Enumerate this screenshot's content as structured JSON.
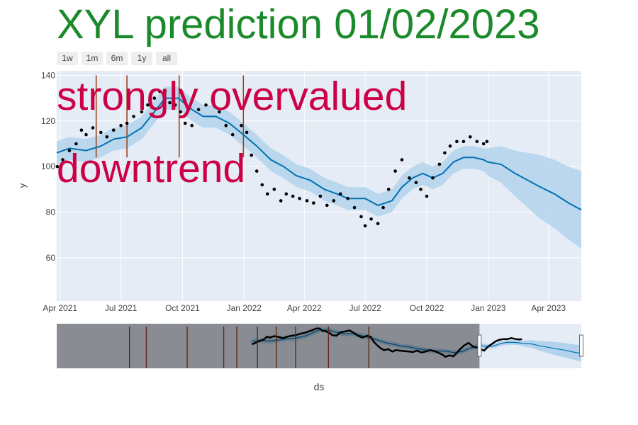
{
  "title": "XYL prediction 01/02/2023",
  "colors": {
    "title": "#1a8a2a",
    "annotation": "#cc0044",
    "plot_bg": "#e5ecf6",
    "forecast_line": "#0072b2",
    "band": "#b3d3ec",
    "changepoint": "#a0431e",
    "points": "#000000"
  },
  "range_buttons": [
    "1w",
    "1m",
    "6m",
    "1y",
    "all"
  ],
  "annotations": [
    "strongly overvalued",
    "downtrend"
  ],
  "chart_data": {
    "type": "line",
    "xlabel": "ds",
    "ylabel": "y",
    "x_range": [
      "2021-03-27",
      "2023-05-20"
    ],
    "ylim": [
      41,
      142
    ],
    "x_ticks": [
      {
        "date": "2021-04-01",
        "label": "Apr 2021"
      },
      {
        "date": "2021-07-01",
        "label": "Jul 2021"
      },
      {
        "date": "2021-10-01",
        "label": "Oct 2021"
      },
      {
        "date": "2022-01-01",
        "label": "Jan 2022"
      },
      {
        "date": "2022-04-01",
        "label": "Apr 2022"
      },
      {
        "date": "2022-07-01",
        "label": "Jul 2022"
      },
      {
        "date": "2022-10-01",
        "label": "Oct 2022"
      },
      {
        "date": "2023-01-01",
        "label": "Jan 2023"
      },
      {
        "date": "2023-04-01",
        "label": "Apr 2023"
      }
    ],
    "y_ticks": [
      60,
      80,
      100,
      120,
      140
    ],
    "grid": true,
    "series": [
      {
        "kind": "forecast",
        "x": [
          "2021-03-27",
          "2021-04-15",
          "2021-05-10",
          "2021-06-01",
          "2021-06-20",
          "2021-07-10",
          "2021-08-01",
          "2021-08-20",
          "2021-09-05",
          "2021-09-25",
          "2021-10-15",
          "2021-11-01",
          "2021-11-20",
          "2021-12-10",
          "2021-12-31",
          "2022-01-20",
          "2022-02-10",
          "2022-03-01",
          "2022-03-20",
          "2022-04-10",
          "2022-05-01",
          "2022-05-20",
          "2022-06-05",
          "2022-06-20",
          "2022-07-01",
          "2022-07-20",
          "2022-08-10",
          "2022-08-25",
          "2022-09-10",
          "2022-09-25",
          "2022-10-10",
          "2022-10-25",
          "2022-11-10",
          "2022-11-25",
          "2022-12-10",
          "2022-12-25",
          "2022-12-31",
          "2023-01-20",
          "2023-02-10",
          "2023-03-01",
          "2023-03-20",
          "2023-04-10",
          "2023-05-01",
          "2023-05-20"
        ],
        "yhat": [
          106,
          108,
          107,
          109,
          112,
          113,
          117,
          124,
          130,
          130,
          125,
          122,
          122,
          119,
          114,
          109,
          103,
          100,
          96,
          94,
          90,
          88,
          86,
          86,
          86,
          83,
          85,
          91,
          95,
          97,
          95,
          97,
          102,
          104,
          104,
          103,
          102,
          101,
          97,
          94,
          91,
          88,
          84,
          81
        ],
        "lower": [
          101,
          103,
          102,
          104,
          107,
          108,
          112,
          119,
          125,
          125,
          120,
          117,
          117,
          114,
          109,
          104,
          98,
          95,
          91,
          89,
          85,
          83,
          81,
          81,
          81,
          78,
          80,
          86,
          90,
          92,
          90,
          92,
          97,
          99,
          99,
          98,
          96,
          93,
          87,
          82,
          77,
          73,
          68,
          64
        ],
        "upper": [
          111,
          113,
          112,
          114,
          117,
          118,
          122,
          129,
          135,
          135,
          130,
          127,
          127,
          124,
          119,
          114,
          108,
          105,
          101,
          99,
          95,
          93,
          91,
          91,
          91,
          88,
          90,
          96,
          100,
          102,
          100,
          102,
          107,
          109,
          109,
          108,
          108,
          109,
          107,
          106,
          105,
          103,
          100,
          98
        ]
      },
      {
        "kind": "actual",
        "x": [
          "2021-03-28",
          "2021-04-05",
          "2021-04-15",
          "2021-04-25",
          "2021-05-03",
          "2021-05-10",
          "2021-05-20",
          "2021-06-01",
          "2021-06-10",
          "2021-06-20",
          "2021-07-01",
          "2021-07-10",
          "2021-07-20",
          "2021-08-01",
          "2021-08-10",
          "2021-08-20",
          "2021-08-28",
          "2021-09-05",
          "2021-09-12",
          "2021-09-20",
          "2021-09-28",
          "2021-10-05",
          "2021-10-15",
          "2021-10-25",
          "2021-11-05",
          "2021-11-15",
          "2021-11-25",
          "2021-12-05",
          "2021-12-15",
          "2021-12-28",
          "2022-01-05",
          "2022-01-12",
          "2022-01-20",
          "2022-01-28",
          "2022-02-05",
          "2022-02-15",
          "2022-02-25",
          "2022-03-05",
          "2022-03-15",
          "2022-03-25",
          "2022-04-05",
          "2022-04-15",
          "2022-04-25",
          "2022-05-05",
          "2022-05-15",
          "2022-05-25",
          "2022-06-05",
          "2022-06-15",
          "2022-06-25",
          "2022-07-01",
          "2022-07-10",
          "2022-07-20",
          "2022-07-28",
          "2022-08-05",
          "2022-08-15",
          "2022-08-25",
          "2022-09-05",
          "2022-09-15",
          "2022-09-22",
          "2022-10-01",
          "2022-10-10",
          "2022-10-20",
          "2022-10-28",
          "2022-11-05",
          "2022-11-15",
          "2022-11-25",
          "2022-12-05",
          "2022-12-15",
          "2022-12-25",
          "2022-12-30"
        ],
        "y": [
          100,
          103,
          107,
          110,
          116,
          114,
          117,
          115,
          113,
          116,
          118,
          119,
          122,
          124,
          127,
          130,
          133,
          133,
          128,
          127,
          124,
          119,
          118,
          125,
          127,
          129,
          124,
          118,
          114,
          118,
          115,
          105,
          98,
          92,
          88,
          90,
          85,
          88,
          87,
          86,
          85,
          84,
          87,
          83,
          85,
          88,
          86,
          82,
          78,
          74,
          77,
          75,
          82,
          90,
          98,
          103,
          95,
          93,
          90,
          87,
          95,
          101,
          106,
          109,
          111,
          111,
          113,
          111,
          110,
          111
        ]
      }
    ],
    "changepoints": [
      "2021-05-25",
      "2021-07-10",
      "2021-09-26",
      "2021-12-31"
    ]
  },
  "rangeslider": {
    "window_start": "2022-09-20",
    "window_end": "2023-05-20",
    "changepoints": [
      "2020-06-10",
      "2020-07-20",
      "2020-10-25",
      "2021-01-20",
      "2021-02-20",
      "2021-04-10",
      "2021-05-25",
      "2021-07-10",
      "2021-09-26",
      "2021-12-31"
    ],
    "x_full_range": [
      "2019-12-20",
      "2023-05-20"
    ],
    "y_full_range": [
      56,
      137
    ]
  }
}
